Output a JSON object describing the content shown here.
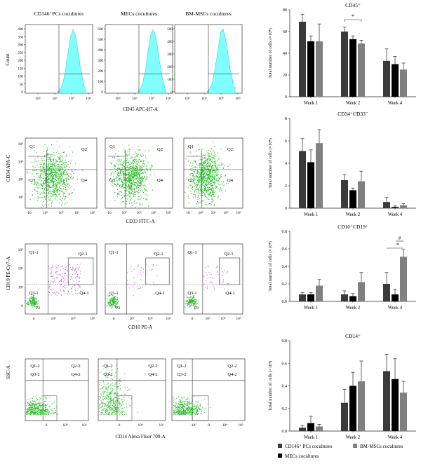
{
  "colors": {
    "pc": "#3a3a3a",
    "mec": "#000000",
    "bm": "#808080",
    "hist": "#7fffff",
    "histStroke": "#22c8c8",
    "scatter": "#22bb22",
    "magenta": "#cc44cc"
  },
  "row1": {
    "panels": [
      "CD146⁺PCs cocultures",
      "MECs cocultures",
      "BM-MSCs cocultures"
    ],
    "ylabel": "Count",
    "xlabel": "CD45 APC-H7-A",
    "y_ticks": [
      [
        "400",
        "350",
        "300",
        "250",
        "200",
        "150",
        "100",
        "50",
        "0"
      ],
      [
        "600",
        "500",
        "400",
        "300",
        "200",
        "100",
        "0"
      ],
      [
        "500",
        "400",
        "300",
        "200",
        "100",
        "0"
      ]
    ],
    "x_ticks": [
      "10²",
      "10³",
      "10⁴",
      "10⁵"
    ]
  },
  "row2": {
    "ylabel": "CD34 APA-C",
    "xlabel": "CD33 FITC-A",
    "quads": [
      "Q1",
      "Q2",
      "Q3",
      "Q4"
    ],
    "y_ticks": [
      "10⁵",
      "10⁴",
      "10³",
      "10²"
    ],
    "x_ticks": [
      "10",
      "10²",
      "10³",
      "10⁴",
      "10⁵"
    ]
  },
  "row3": {
    "ylabel": "CD19 PE-Cy7-A",
    "xlabel": "CD10 PE-A",
    "quads": [
      "Q1-1",
      "Q2-1",
      "Q3-1",
      "Q4-1"
    ],
    "gate": "P3",
    "y_ticks": [
      "10⁵",
      "10⁴",
      "10³",
      "0"
    ],
    "x_ticks": [
      "0",
      "10³",
      "10⁴",
      "10⁵"
    ]
  },
  "row4": {
    "ylabel": "SSC-A",
    "xlabel": "CD14 Alexa Fluor 700-A",
    "quads": [
      "Q1-2",
      "Q2-2",
      "Q3-2",
      "Q4-2"
    ],
    "x_ticks": [
      [
        "0",
        "10⁴",
        "10⁵"
      ],
      [
        "0",
        "10⁴",
        "10⁵"
      ],
      [
        "−10³",
        "0",
        "10⁴",
        "10⁵"
      ]
    ]
  },
  "legend": [
    "CD146⁺ PCs cocultures",
    "MECs cocultures",
    "BM-MSCs cocultures"
  ],
  "chart_data": [
    {
      "type": "bar",
      "title": "CD45⁺",
      "ylabel": "Total number of cells (×10⁴)",
      "categories": [
        "Week 1",
        "Week 2",
        "Week 4"
      ],
      "ylim": [
        0,
        80
      ],
      "yticks": [
        "0",
        "20",
        "40",
        "60",
        "80"
      ],
      "series": [
        {
          "name": "CD146⁺ PCs cocultures",
          "values": [
            69,
            60,
            33
          ],
          "errors": [
            7,
            4,
            11
          ]
        },
        {
          "name": "MECs cocultures",
          "values": [
            51,
            53,
            30
          ],
          "errors": [
            5,
            3,
            7
          ]
        },
        {
          "name": "BM-MSCs cocultures",
          "values": [
            51,
            49,
            25
          ],
          "errors": [
            16,
            3,
            6
          ]
        }
      ],
      "annotations": [
        "*"
      ]
    },
    {
      "type": "bar",
      "title": "CD34⁺CD33⁻",
      "ylabel": "Total number of cells (×10⁴)",
      "categories": [
        "Week 1",
        "Week 2",
        "Week 4"
      ],
      "ylim": [
        0,
        8
      ],
      "yticks": [
        "0",
        "2",
        "4",
        "6",
        "8"
      ],
      "series": [
        {
          "name": "CD146⁺ PCs cocultures",
          "values": [
            5.1,
            2.5,
            0.55
          ],
          "errors": [
            1.1,
            0.5,
            0.4
          ]
        },
        {
          "name": "MECs cocultures",
          "values": [
            4.1,
            1.6,
            0.1
          ],
          "errors": [
            1.1,
            0.2,
            0.1
          ]
        },
        {
          "name": "BM-MSCs cocultures",
          "values": [
            5.8,
            2.4,
            0.25
          ],
          "errors": [
            1.2,
            0.9,
            0.15
          ]
        }
      ]
    },
    {
      "type": "bar",
      "title": "CD10⁺CD19⁺",
      "ylabel": "Total number of cells (×10⁴)",
      "categories": [
        "Week 1",
        "Week 2",
        "Week 4"
      ],
      "ylim": [
        0,
        0.8
      ],
      "yticks": [
        "0.0",
        "0.2",
        "0.4",
        "0.6",
        "0.8"
      ],
      "series": [
        {
          "name": "CD146⁺ PCs cocultures",
          "values": [
            0.08,
            0.08,
            0.2
          ],
          "errors": [
            0.02,
            0.04,
            0.13
          ]
        },
        {
          "name": "MECs cocultures",
          "values": [
            0.08,
            0.06,
            0.08
          ],
          "errors": [
            0.02,
            0.03,
            0.06
          ]
        },
        {
          "name": "BM-MSCs cocultures",
          "values": [
            0.18,
            0.22,
            0.51
          ],
          "errors": [
            0.07,
            0.11,
            0.08
          ]
        }
      ],
      "annotations": [
        "*",
        "#"
      ]
    },
    {
      "type": "bar",
      "title": "CD14⁺",
      "ylabel": "Total number of cells (×10⁴)",
      "categories": [
        "Week 1",
        "Week 2",
        "Week 4"
      ],
      "ylim": [
        0,
        0.8
      ],
      "yticks": [
        "0.0",
        "0.2",
        "0.4",
        "0.6",
        "0.8"
      ],
      "series": [
        {
          "name": "CD146⁺ PCs cocultures",
          "values": [
            0.03,
            0.25,
            0.53
          ],
          "errors": [
            0.02,
            0.12,
            0.15
          ]
        },
        {
          "name": "MECs cocultures",
          "values": [
            0.07,
            0.4,
            0.46
          ],
          "errors": [
            0.06,
            0.12,
            0.18
          ]
        },
        {
          "name": "BM-MSCs cocultures",
          "values": [
            0.04,
            0.44,
            0.34
          ],
          "errors": [
            0.02,
            0.18,
            0.1
          ]
        }
      ]
    }
  ]
}
